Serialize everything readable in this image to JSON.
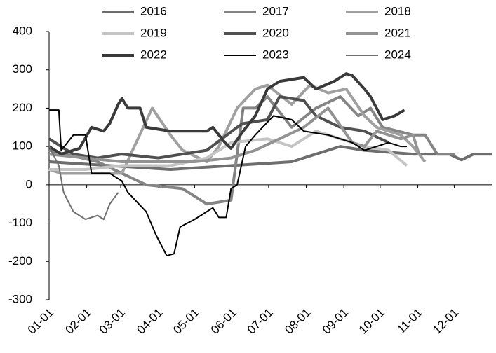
{
  "chart_data": {
    "type": "line",
    "xlim": [
      0,
      365
    ],
    "xticks": [
      {
        "value": 0,
        "label": "01-01"
      },
      {
        "value": 31,
        "label": "02-01"
      },
      {
        "value": 59,
        "label": "03-01"
      },
      {
        "value": 90,
        "label": "04-01"
      },
      {
        "value": 120,
        "label": "05-01"
      },
      {
        "value": 151,
        "label": "06-01"
      },
      {
        "value": 181,
        "label": "07-01"
      },
      {
        "value": 212,
        "label": "08-01"
      },
      {
        "value": 243,
        "label": "09-01"
      },
      {
        "value": 273,
        "label": "10-01"
      },
      {
        "value": 304,
        "label": "11-01"
      },
      {
        "value": 334,
        "label": "12-01"
      }
    ],
    "ylim": [
      -300,
      400
    ],
    "yticks": [
      -300,
      -200,
      -100,
      0,
      100,
      200,
      300,
      400
    ],
    "series": [
      {
        "name": "2016",
        "color": "#6e6e6e",
        "line_width": 4,
        "x": [
          0,
          50,
          100,
          150,
          200,
          220,
          240,
          260,
          300,
          330,
          340,
          350,
          365
        ],
        "values": [
          60,
          50,
          40,
          50,
          60,
          80,
          100,
          90,
          80,
          80,
          65,
          80,
          80
        ]
      },
      {
        "name": "2017",
        "color": "#848484",
        "line_width": 4,
        "x": [
          0,
          40,
          80,
          110,
          130,
          150,
          160,
          170,
          180,
          200,
          220,
          240,
          255,
          265,
          275,
          300,
          310,
          320,
          335
        ],
        "values": [
          90,
          60,
          0,
          -10,
          -50,
          -40,
          200,
          200,
          230,
          150,
          200,
          230,
          180,
          200,
          150,
          130,
          130,
          80,
          80
        ]
      },
      {
        "name": "2018",
        "color": "#a0a0a0",
        "line_width": 4,
        "x": [
          0,
          10,
          40,
          60,
          85,
          100,
          110,
          130,
          140,
          155,
          170,
          180,
          200,
          215,
          230,
          245,
          260,
          270,
          290,
          300,
          310
        ],
        "values": [
          40,
          30,
          30,
          30,
          200,
          130,
          90,
          60,
          100,
          200,
          250,
          260,
          210,
          260,
          240,
          250,
          180,
          150,
          130,
          100,
          60
        ]
      },
      {
        "name": "2019",
        "color": "#c4c4c4",
        "line_width": 4,
        "x": [
          0,
          30,
          60,
          100,
          130,
          150,
          180,
          200,
          220,
          240,
          260,
          280,
          295
        ],
        "values": [
          40,
          40,
          50,
          50,
          70,
          110,
          120,
          100,
          140,
          120,
          100,
          90,
          50
        ]
      },
      {
        "name": "2020",
        "color": "#505050",
        "line_width": 4,
        "x": [
          0,
          10,
          20,
          40,
          60,
          90,
          110,
          130,
          155,
          160,
          180,
          190,
          210,
          220,
          240,
          260,
          280
        ],
        "values": [
          120,
          100,
          80,
          70,
          80,
          70,
          80,
          90,
          150,
          160,
          170,
          230,
          220,
          180,
          150,
          140,
          110
        ]
      },
      {
        "name": "2021",
        "color": "#939393",
        "line_width": 4,
        "x": [
          0,
          30,
          60,
          90,
          120,
          150,
          170,
          190,
          210,
          230,
          250,
          260,
          270,
          290,
          300,
          305
        ],
        "values": [
          80,
          70,
          60,
          60,
          60,
          70,
          90,
          120,
          150,
          200,
          110,
          100,
          140,
          120,
          130,
          80
        ]
      },
      {
        "name": "2022",
        "color": "#3a3a3a",
        "line_width": 4,
        "x": [
          0,
          10,
          25,
          35,
          45,
          50,
          57,
          60,
          65,
          75,
          80,
          100,
          130,
          135,
          140,
          145,
          150,
          160,
          170,
          180,
          190,
          210,
          220,
          235,
          245,
          250,
          260,
          265,
          275,
          285,
          293
        ],
        "values": [
          100,
          80,
          95,
          150,
          140,
          160,
          210,
          225,
          200,
          200,
          150,
          140,
          140,
          150,
          130,
          110,
          95,
          140,
          180,
          250,
          270,
          280,
          250,
          270,
          290,
          285,
          250,
          230,
          170,
          180,
          195
        ]
      },
      {
        "name": "2023",
        "color": "#000000",
        "line_width": 2,
        "x": [
          0,
          8,
          10,
          20,
          30,
          35,
          50,
          60,
          65,
          80,
          88,
          97,
          103,
          108,
          120,
          135,
          140,
          146,
          150,
          155,
          162,
          170,
          185,
          200,
          210,
          230,
          240,
          250,
          260,
          270,
          280,
          290,
          295
        ],
        "values": [
          195,
          195,
          90,
          130,
          130,
          30,
          30,
          10,
          -20,
          -70,
          -130,
          -185,
          -180,
          -110,
          -90,
          -60,
          -85,
          -85,
          -10,
          0,
          100,
          130,
          180,
          170,
          140,
          130,
          120,
          110,
          90,
          100,
          110,
          100,
          100
        ]
      },
      {
        "name": "2024",
        "color": "#707070",
        "line_width": 2,
        "x": [
          0,
          8,
          12,
          20,
          30,
          40,
          45,
          50,
          57
        ],
        "values": [
          100,
          50,
          -20,
          -70,
          -90,
          -80,
          -90,
          -50,
          -20
        ]
      }
    ]
  }
}
